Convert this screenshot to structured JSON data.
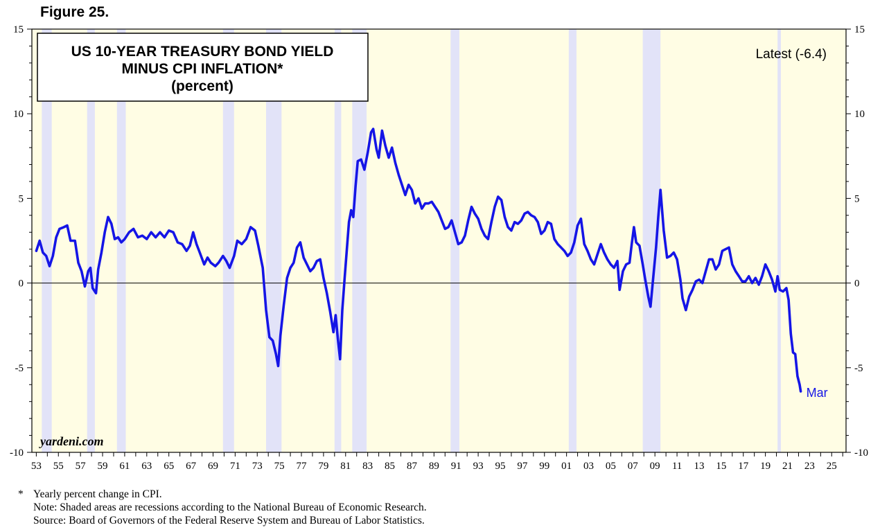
{
  "figure_label": "Figure 25.",
  "chart_data": {
    "type": "line",
    "title_lines": [
      "US 10-YEAR TREASURY BOND YIELD",
      "MINUS CPI INFLATION*",
      "(percent)"
    ],
    "latest_label": "Latest (-6.4)",
    "end_label": "Mar",
    "watermark": "yardeni.com",
    "xlim": [
      1952.6,
      2026.3
    ],
    "ylim": [
      -10,
      15
    ],
    "y_ticks": [
      -10,
      -5,
      0,
      5,
      10,
      15
    ],
    "x_ticks": [
      {
        "year": 1953,
        "label": "53"
      },
      {
        "year": 1955,
        "label": "55"
      },
      {
        "year": 1957,
        "label": "57"
      },
      {
        "year": 1959,
        "label": "59"
      },
      {
        "year": 1961,
        "label": "61"
      },
      {
        "year": 1963,
        "label": "63"
      },
      {
        "year": 1965,
        "label": "65"
      },
      {
        "year": 1967,
        "label": "67"
      },
      {
        "year": 1969,
        "label": "69"
      },
      {
        "year": 1971,
        "label": "71"
      },
      {
        "year": 1973,
        "label": "73"
      },
      {
        "year": 1975,
        "label": "75"
      },
      {
        "year": 1977,
        "label": "77"
      },
      {
        "year": 1979,
        "label": "79"
      },
      {
        "year": 1981,
        "label": "81"
      },
      {
        "year": 1983,
        "label": "83"
      },
      {
        "year": 1985,
        "label": "85"
      },
      {
        "year": 1987,
        "label": "87"
      },
      {
        "year": 1989,
        "label": "89"
      },
      {
        "year": 1991,
        "label": "91"
      },
      {
        "year": 1993,
        "label": "93"
      },
      {
        "year": 1995,
        "label": "95"
      },
      {
        "year": 1997,
        "label": "97"
      },
      {
        "year": 1999,
        "label": "99"
      },
      {
        "year": 2001,
        "label": "01"
      },
      {
        "year": 2003,
        "label": "03"
      },
      {
        "year": 2005,
        "label": "05"
      },
      {
        "year": 2007,
        "label": "07"
      },
      {
        "year": 2009,
        "label": "09"
      },
      {
        "year": 2011,
        "label": "11"
      },
      {
        "year": 2013,
        "label": "13"
      },
      {
        "year": 2015,
        "label": "15"
      },
      {
        "year": 2017,
        "label": "17"
      },
      {
        "year": 2019,
        "label": "19"
      },
      {
        "year": 2021,
        "label": "21"
      },
      {
        "year": 2023,
        "label": "23"
      },
      {
        "year": 2025,
        "label": "25"
      }
    ],
    "recessions": [
      [
        1953.5,
        1954.4
      ],
      [
        1957.6,
        1958.3
      ],
      [
        1960.3,
        1961.1
      ],
      [
        1969.9,
        1970.9
      ],
      [
        1973.8,
        1975.2
      ],
      [
        1980.0,
        1980.6
      ],
      [
        1981.6,
        1982.9
      ],
      [
        1990.5,
        1991.3
      ],
      [
        2001.2,
        2001.9
      ],
      [
        2007.9,
        2009.5
      ],
      [
        2020.1,
        2020.4
      ]
    ],
    "series": [
      {
        "name": "US 10-Year Treasury Bond Yield minus CPI Inflation",
        "color": "#1515e6",
        "points": [
          [
            1953.0,
            1.9
          ],
          [
            1953.3,
            2.5
          ],
          [
            1953.6,
            1.8
          ],
          [
            1953.9,
            1.6
          ],
          [
            1954.2,
            1.0
          ],
          [
            1954.5,
            1.6
          ],
          [
            1954.8,
            2.7
          ],
          [
            1955.1,
            3.2
          ],
          [
            1955.5,
            3.3
          ],
          [
            1955.8,
            3.4
          ],
          [
            1956.1,
            2.5
          ],
          [
            1956.5,
            2.5
          ],
          [
            1956.8,
            1.2
          ],
          [
            1957.1,
            0.7
          ],
          [
            1957.4,
            -0.2
          ],
          [
            1957.7,
            0.7
          ],
          [
            1957.9,
            0.9
          ],
          [
            1958.1,
            -0.3
          ],
          [
            1958.4,
            -0.6
          ],
          [
            1958.6,
            0.8
          ],
          [
            1958.9,
            1.8
          ],
          [
            1959.2,
            3.0
          ],
          [
            1959.5,
            3.9
          ],
          [
            1959.8,
            3.5
          ],
          [
            1960.1,
            2.6
          ],
          [
            1960.4,
            2.7
          ],
          [
            1960.7,
            2.4
          ],
          [
            1961.0,
            2.6
          ],
          [
            1961.4,
            3.0
          ],
          [
            1961.8,
            3.2
          ],
          [
            1962.2,
            2.7
          ],
          [
            1962.6,
            2.8
          ],
          [
            1963.0,
            2.6
          ],
          [
            1963.4,
            3.0
          ],
          [
            1963.8,
            2.7
          ],
          [
            1964.2,
            3.0
          ],
          [
            1964.6,
            2.7
          ],
          [
            1965.0,
            3.1
          ],
          [
            1965.4,
            3.0
          ],
          [
            1965.8,
            2.4
          ],
          [
            1966.2,
            2.3
          ],
          [
            1966.6,
            1.9
          ],
          [
            1966.9,
            2.2
          ],
          [
            1967.2,
            3.0
          ],
          [
            1967.5,
            2.3
          ],
          [
            1967.8,
            1.8
          ],
          [
            1968.2,
            1.1
          ],
          [
            1968.5,
            1.5
          ],
          [
            1968.8,
            1.2
          ],
          [
            1969.2,
            1.0
          ],
          [
            1969.5,
            1.2
          ],
          [
            1969.9,
            1.6
          ],
          [
            1970.2,
            1.3
          ],
          [
            1970.5,
            0.9
          ],
          [
            1970.9,
            1.6
          ],
          [
            1971.2,
            2.5
          ],
          [
            1971.6,
            2.3
          ],
          [
            1972.0,
            2.6
          ],
          [
            1972.4,
            3.3
          ],
          [
            1972.8,
            3.1
          ],
          [
            1973.1,
            2.2
          ],
          [
            1973.5,
            0.9
          ],
          [
            1973.8,
            -1.6
          ],
          [
            1974.1,
            -3.2
          ],
          [
            1974.4,
            -3.4
          ],
          [
            1974.7,
            -4.2
          ],
          [
            1974.9,
            -4.9
          ],
          [
            1975.1,
            -3.1
          ],
          [
            1975.4,
            -1.3
          ],
          [
            1975.7,
            0.3
          ],
          [
            1976.0,
            0.9
          ],
          [
            1976.3,
            1.2
          ],
          [
            1976.6,
            2.1
          ],
          [
            1976.9,
            2.4
          ],
          [
            1977.2,
            1.5
          ],
          [
            1977.5,
            1.1
          ],
          [
            1977.8,
            0.7
          ],
          [
            1978.1,
            0.9
          ],
          [
            1978.4,
            1.3
          ],
          [
            1978.7,
            1.4
          ],
          [
            1979.0,
            0.3
          ],
          [
            1979.3,
            -0.6
          ],
          [
            1979.6,
            -1.7
          ],
          [
            1979.9,
            -2.9
          ],
          [
            1980.1,
            -1.9
          ],
          [
            1980.3,
            -3.3
          ],
          [
            1980.5,
            -4.5
          ],
          [
            1980.7,
            -1.6
          ],
          [
            1980.9,
            0.2
          ],
          [
            1981.1,
            1.9
          ],
          [
            1981.3,
            3.6
          ],
          [
            1981.5,
            4.3
          ],
          [
            1981.7,
            3.9
          ],
          [
            1981.9,
            5.7
          ],
          [
            1982.1,
            7.2
          ],
          [
            1982.4,
            7.3
          ],
          [
            1982.7,
            6.7
          ],
          [
            1983.0,
            7.7
          ],
          [
            1983.3,
            8.9
          ],
          [
            1983.5,
            9.1
          ],
          [
            1983.8,
            7.9
          ],
          [
            1984.0,
            7.4
          ],
          [
            1984.3,
            9.0
          ],
          [
            1984.6,
            8.1
          ],
          [
            1984.9,
            7.4
          ],
          [
            1985.2,
            8.0
          ],
          [
            1985.5,
            7.1
          ],
          [
            1985.8,
            6.4
          ],
          [
            1986.1,
            5.8
          ],
          [
            1986.4,
            5.2
          ],
          [
            1986.7,
            5.8
          ],
          [
            1987.0,
            5.5
          ],
          [
            1987.3,
            4.7
          ],
          [
            1987.6,
            5.0
          ],
          [
            1987.9,
            4.4
          ],
          [
            1988.2,
            4.7
          ],
          [
            1988.5,
            4.7
          ],
          [
            1988.8,
            4.8
          ],
          [
            1989.1,
            4.5
          ],
          [
            1989.4,
            4.2
          ],
          [
            1989.7,
            3.7
          ],
          [
            1990.0,
            3.2
          ],
          [
            1990.3,
            3.3
          ],
          [
            1990.6,
            3.7
          ],
          [
            1990.9,
            3.0
          ],
          [
            1991.2,
            2.3
          ],
          [
            1991.5,
            2.4
          ],
          [
            1991.8,
            2.8
          ],
          [
            1992.1,
            3.7
          ],
          [
            1992.4,
            4.5
          ],
          [
            1992.7,
            4.1
          ],
          [
            1993.0,
            3.8
          ],
          [
            1993.3,
            3.2
          ],
          [
            1993.6,
            2.8
          ],
          [
            1993.9,
            2.6
          ],
          [
            1994.2,
            3.6
          ],
          [
            1994.5,
            4.5
          ],
          [
            1994.8,
            5.1
          ],
          [
            1995.1,
            4.9
          ],
          [
            1995.4,
            3.9
          ],
          [
            1995.7,
            3.3
          ],
          [
            1996.0,
            3.1
          ],
          [
            1996.3,
            3.6
          ],
          [
            1996.6,
            3.5
          ],
          [
            1996.9,
            3.7
          ],
          [
            1997.2,
            4.1
          ],
          [
            1997.5,
            4.2
          ],
          [
            1997.8,
            4.0
          ],
          [
            1998.1,
            3.9
          ],
          [
            1998.4,
            3.6
          ],
          [
            1998.7,
            2.9
          ],
          [
            1999.0,
            3.1
          ],
          [
            1999.3,
            3.6
          ],
          [
            1999.6,
            3.5
          ],
          [
            1999.9,
            2.6
          ],
          [
            2000.2,
            2.3
          ],
          [
            2000.5,
            2.1
          ],
          [
            2000.8,
            1.9
          ],
          [
            2001.1,
            1.6
          ],
          [
            2001.4,
            1.8
          ],
          [
            2001.7,
            2.4
          ],
          [
            2002.0,
            3.4
          ],
          [
            2002.3,
            3.8
          ],
          [
            2002.6,
            2.3
          ],
          [
            2002.9,
            1.9
          ],
          [
            2003.2,
            1.4
          ],
          [
            2003.5,
            1.1
          ],
          [
            2003.8,
            1.7
          ],
          [
            2004.1,
            2.3
          ],
          [
            2004.4,
            1.8
          ],
          [
            2004.7,
            1.4
          ],
          [
            2005.0,
            1.1
          ],
          [
            2005.3,
            0.9
          ],
          [
            2005.6,
            1.3
          ],
          [
            2005.8,
            -0.4
          ],
          [
            2006.1,
            0.7
          ],
          [
            2006.4,
            1.1
          ],
          [
            2006.7,
            1.2
          ],
          [
            2006.9,
            2.3
          ],
          [
            2007.1,
            3.3
          ],
          [
            2007.3,
            2.4
          ],
          [
            2007.6,
            2.2
          ],
          [
            2007.9,
            1.1
          ],
          [
            2008.1,
            0.3
          ],
          [
            2008.4,
            -0.8
          ],
          [
            2008.6,
            -1.4
          ],
          [
            2008.9,
            0.7
          ],
          [
            2009.1,
            2.1
          ],
          [
            2009.3,
            3.9
          ],
          [
            2009.5,
            5.5
          ],
          [
            2009.8,
            3.1
          ],
          [
            2010.1,
            1.5
          ],
          [
            2010.4,
            1.6
          ],
          [
            2010.7,
            1.8
          ],
          [
            2011.0,
            1.4
          ],
          [
            2011.3,
            0.2
          ],
          [
            2011.5,
            -0.9
          ],
          [
            2011.8,
            -1.6
          ],
          [
            2012.1,
            -0.8
          ],
          [
            2012.4,
            -0.4
          ],
          [
            2012.7,
            0.1
          ],
          [
            2013.0,
            0.2
          ],
          [
            2013.3,
            0.0
          ],
          [
            2013.6,
            0.7
          ],
          [
            2013.9,
            1.4
          ],
          [
            2014.2,
            1.4
          ],
          [
            2014.5,
            0.8
          ],
          [
            2014.8,
            1.1
          ],
          [
            2015.1,
            1.9
          ],
          [
            2015.4,
            2.0
          ],
          [
            2015.7,
            2.1
          ],
          [
            2016.0,
            1.1
          ],
          [
            2016.3,
            0.7
          ],
          [
            2016.6,
            0.4
          ],
          [
            2016.9,
            0.1
          ],
          [
            2017.2,
            0.1
          ],
          [
            2017.5,
            0.4
          ],
          [
            2017.8,
            0.0
          ],
          [
            2018.1,
            0.3
          ],
          [
            2018.4,
            -0.1
          ],
          [
            2018.7,
            0.4
          ],
          [
            2019.0,
            1.1
          ],
          [
            2019.3,
            0.7
          ],
          [
            2019.6,
            0.2
          ],
          [
            2019.9,
            -0.5
          ],
          [
            2020.1,
            0.4
          ],
          [
            2020.3,
            -0.4
          ],
          [
            2020.6,
            -0.5
          ],
          [
            2020.9,
            -0.3
          ],
          [
            2021.1,
            -1.0
          ],
          [
            2021.3,
            -3.0
          ],
          [
            2021.5,
            -4.1
          ],
          [
            2021.7,
            -4.2
          ],
          [
            2021.9,
            -5.5
          ],
          [
            2022.1,
            -6.0
          ],
          [
            2022.2,
            -6.4
          ]
        ]
      }
    ],
    "footnotes": [
      {
        "mark": "*",
        "text": "Yearly percent change in CPI."
      },
      {
        "mark": "",
        "text": "Note: Shaded areas are recessions according to the National Bureau of Economic Research."
      },
      {
        "mark": "",
        "text": "Source: Board of Governors of the Federal Reserve System and Bureau of Labor Statistics."
      }
    ]
  },
  "colors": {
    "plot_background": "#fffde4",
    "recession_shade": "#e2e3f8",
    "line": "#1515e6",
    "axis": "#000000"
  }
}
